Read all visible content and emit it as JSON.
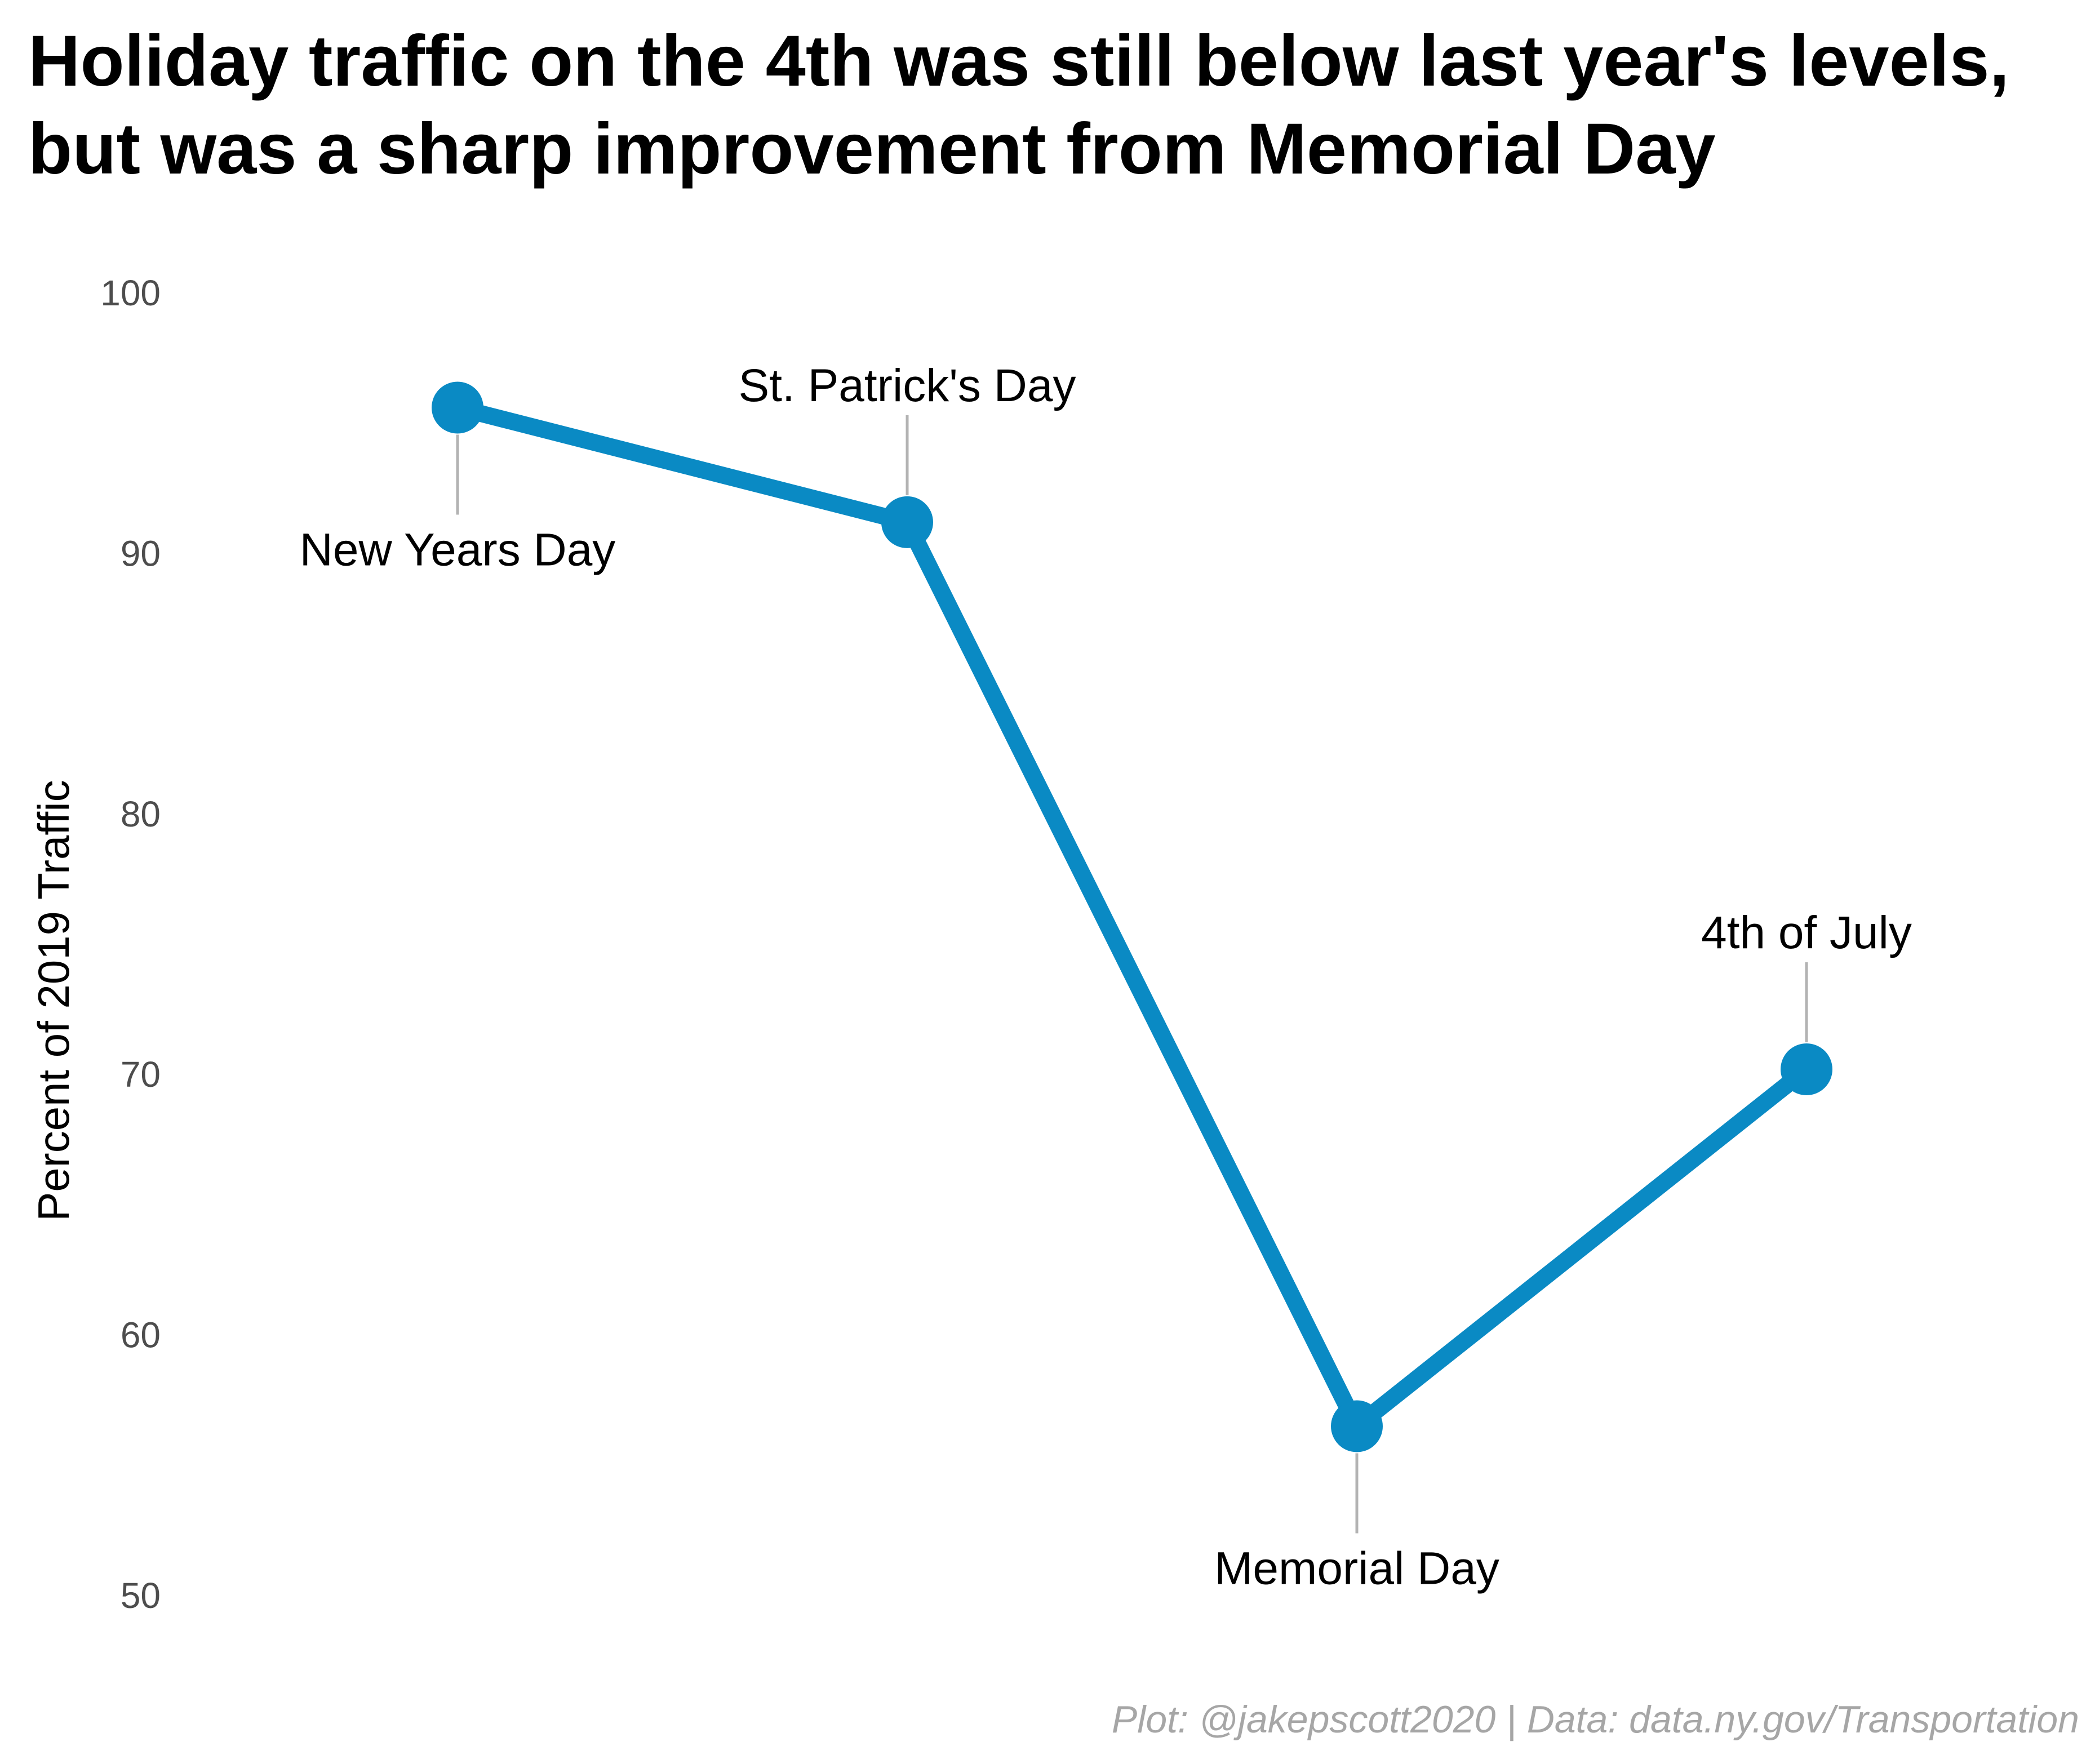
{
  "chart_data": {
    "type": "line",
    "title_lines": [
      "Holiday traffic on the 4th was still below last year's levels,",
      "but was a sharp improvement from Memorial Day"
    ],
    "xlabel": "",
    "ylabel": "Percent of 2019 Traffic",
    "ylim": [
      50,
      100
    ],
    "yticks": [
      "50",
      "60",
      "70",
      "80",
      "90",
      "100"
    ],
    "grid": false,
    "categories": [
      "New Years Day",
      "St. Patrick's Day",
      "Memorial Day",
      "4th of July"
    ],
    "series": [
      {
        "values": [
          95.6,
          91.2,
          56.5,
          70.2
        ]
      }
    ],
    "label_positions": [
      "below",
      "above",
      "below",
      "above"
    ],
    "caption": "Plot: @jakepscott2020 | Data: data.ny.gov/Transportation",
    "colors": {
      "line": "#0a8ac4",
      "leader": "#b3b3b3"
    }
  }
}
